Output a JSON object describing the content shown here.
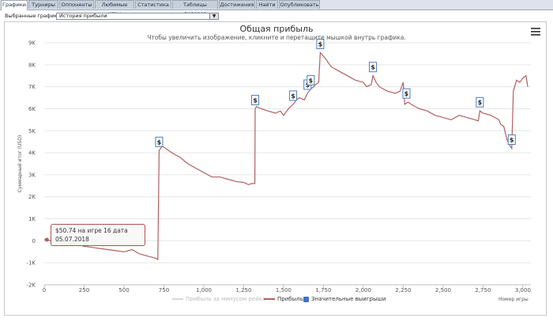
{
  "tabs": [
    {
      "label": "Графики",
      "active": true
    },
    {
      "label": "Турниры"
    },
    {
      "label": "Оппоненты"
    },
    {
      "label": "Любимые игры"
    },
    {
      "label": "Статистика"
    },
    {
      "label": "Таблицы лидеров"
    },
    {
      "label": "Достижения"
    },
    {
      "label": "Найти"
    },
    {
      "label": "Опубликовать"
    }
  ],
  "selector": {
    "label": "Выбранные графики:",
    "value": "История прибыли"
  },
  "chart": {
    "title": "Общая прибыль",
    "subtitle": "Чтобы увеличить изображение, кликните и перетащите мышкой внутрь графика.",
    "ylabel": "Суммарный итог (USD)",
    "xlabel": "Номер игры",
    "marker_label": "$",
    "tooltip": {
      "line1": "$50.74 на игре 16 дата",
      "line2": "05.07.2018"
    },
    "legend": [
      {
        "label": "Прибыль за минусом рейка",
        "color": "#d9d9d9",
        "kind": "line"
      },
      {
        "label": "Прибыль",
        "color": "#b06060",
        "kind": "line"
      },
      {
        "label": "Значительные выигрыши",
        "color": "#4472c4",
        "kind": "box"
      }
    ],
    "colors": {
      "line": "#b06060",
      "grid": "#e6e6e6",
      "marker_border": "#4a7ebb"
    }
  },
  "chart_data": {
    "type": "line",
    "title": "Общая прибыль",
    "xlabel": "Номер игры",
    "ylabel": "Суммарный итог (USD)",
    "xlim": [
      0,
      3050
    ],
    "ylim": [
      -2000,
      9000
    ],
    "x_ticks": [
      0,
      250,
      500,
      750,
      1000,
      1250,
      1500,
      1750,
      2000,
      2250,
      2500,
      2750,
      3000
    ],
    "x_tick_labels": [
      "0",
      "250",
      "500",
      "750",
      "1,000",
      "1,250",
      "1,500",
      "1,750",
      "2,000",
      "2,250",
      "2,500",
      "2,750",
      "3,000"
    ],
    "y_ticks": [
      -2000,
      -1000,
      0,
      1000,
      2000,
      3000,
      4000,
      5000,
      6000,
      7000,
      8000,
      9000
    ],
    "y_tick_labels": [
      "-2K",
      "-1K",
      "0",
      "1K",
      "2K",
      "3K",
      "4K",
      "5K",
      "6K",
      "7K",
      "8K",
      "9K"
    ],
    "grid": true,
    "legend_position": "bottom",
    "series": [
      {
        "name": "Прибыль",
        "x": [
          0,
          16,
          50,
          100,
          150,
          200,
          250,
          300,
          350,
          400,
          450,
          500,
          550,
          600,
          650,
          700,
          712,
          720,
          740,
          760,
          800,
          850,
          900,
          950,
          1000,
          1050,
          1100,
          1150,
          1200,
          1250,
          1280,
          1300,
          1320,
          1322,
          1330,
          1360,
          1400,
          1450,
          1480,
          1500,
          1530,
          1560,
          1580,
          1600,
          1630,
          1650,
          1660,
          1670,
          1690,
          1700,
          1720,
          1730,
          1760,
          1800,
          1850,
          1900,
          1950,
          2000,
          2020,
          2050,
          2060,
          2080,
          2100,
          2150,
          2200,
          2230,
          2250,
          2260,
          2280,
          2300,
          2350,
          2400,
          2450,
          2500,
          2550,
          2600,
          2650,
          2700,
          2720,
          2730,
          2750,
          2800,
          2850,
          2860,
          2880,
          2900,
          2920,
          2930,
          2940,
          2960,
          2980,
          3000,
          3020,
          3030
        ],
        "values": [
          50,
          50,
          -20,
          -50,
          -100,
          -150,
          -250,
          -300,
          -350,
          -400,
          -450,
          -500,
          -400,
          -600,
          -700,
          -800,
          -850,
          4100,
          4300,
          4200,
          4000,
          3800,
          3500,
          3300,
          3100,
          2900,
          2900,
          2800,
          2700,
          2650,
          2550,
          2600,
          2600,
          6000,
          6100,
          6000,
          5900,
          5800,
          5900,
          5700,
          6000,
          6200,
          6400,
          6500,
          6400,
          6700,
          6800,
          6900,
          7000,
          7100,
          7200,
          8550,
          8300,
          7900,
          7700,
          7500,
          7300,
          7200,
          7000,
          7100,
          7500,
          7200,
          7000,
          6800,
          6700,
          6800,
          7200,
          6200,
          6300,
          6200,
          6000,
          5900,
          5700,
          5600,
          5500,
          5700,
          5600,
          5500,
          5450,
          5900,
          5800,
          5700,
          5500,
          5300,
          5200,
          4600,
          4300,
          4200,
          6800,
          7300,
          7200,
          7400,
          7500,
          7000
        ]
      }
    ],
    "significant_wins_x": [
      720,
      1322,
      1560,
      1650,
      1670,
      1730,
      2060,
      2270,
      2730,
      2930
    ]
  }
}
